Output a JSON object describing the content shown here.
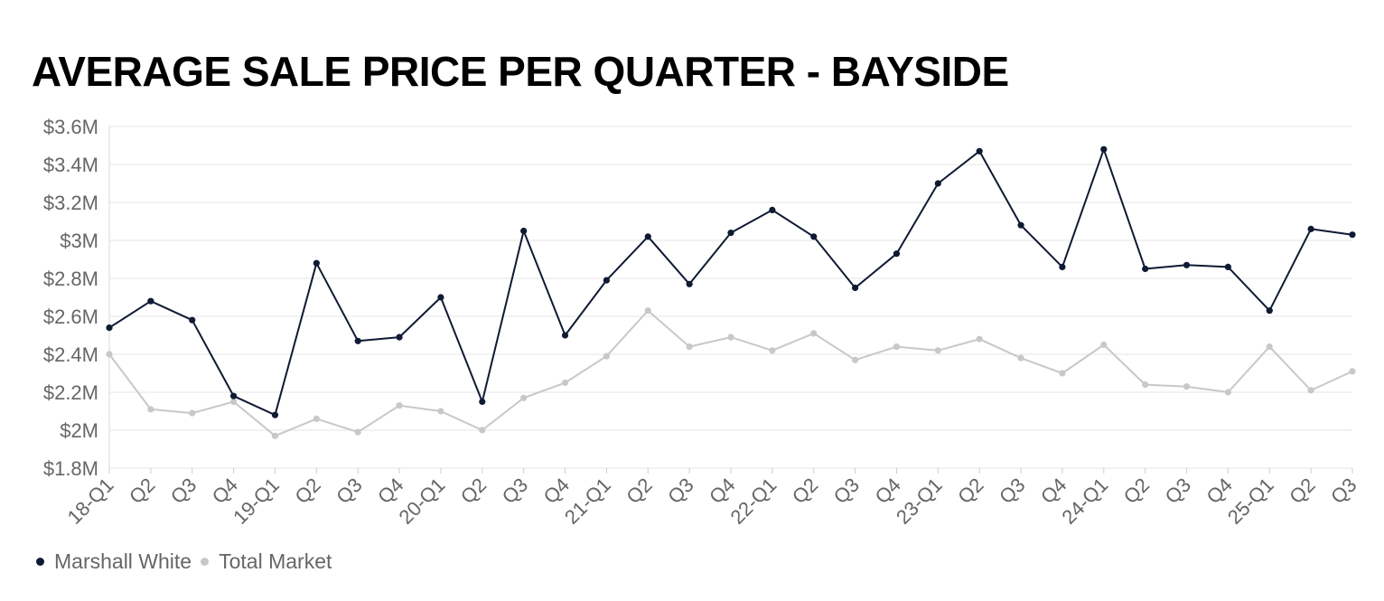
{
  "chart_data": {
    "type": "line",
    "title": "AVERAGE SALE PRICE PER QUARTER - BAYSIDE",
    "xlabel": "",
    "ylabel": "",
    "categories": [
      "18-Q1",
      "Q2",
      "Q3",
      "Q4",
      "19-Q1",
      "Q2",
      "Q3",
      "Q4",
      "20-Q1",
      "Q2",
      "Q3",
      "Q4",
      "21-Q1",
      "Q2",
      "Q3",
      "Q4",
      "22-Q1",
      "Q2",
      "Q3",
      "Q4",
      "23-Q1",
      "Q2",
      "Q3",
      "Q4",
      "24-Q1",
      "Q2",
      "Q3",
      "Q4",
      "25-Q1",
      "Q2",
      "Q3"
    ],
    "ylim": [
      1.8,
      3.6
    ],
    "yticks": [
      1.8,
      2.0,
      2.2,
      2.4,
      2.6,
      2.8,
      3.0,
      3.2,
      3.4,
      3.6
    ],
    "ytick_labels": [
      "$1.8M",
      "$2M",
      "$2.2M",
      "$2.4M",
      "$2.6M",
      "$2.8M",
      "$3M",
      "$3.2M",
      "$3.4M",
      "$3.6M"
    ],
    "grid": true,
    "legend_position": "bottom-left",
    "series": [
      {
        "name": "Marshall White",
        "color": "#0f1a33",
        "values": [
          2.54,
          2.68,
          2.58,
          2.18,
          2.08,
          2.88,
          2.47,
          2.49,
          2.7,
          2.15,
          3.05,
          2.5,
          2.79,
          3.02,
          2.77,
          3.04,
          3.16,
          3.02,
          2.75,
          2.93,
          3.3,
          3.47,
          3.08,
          2.86,
          3.48,
          2.85,
          2.87,
          2.86,
          2.63,
          3.06,
          3.03
        ]
      },
      {
        "name": "Total Market",
        "color": "#c8c8c8",
        "values": [
          2.4,
          2.11,
          2.09,
          2.15,
          1.97,
          2.06,
          1.99,
          2.13,
          2.1,
          2.0,
          2.17,
          2.25,
          2.39,
          2.63,
          2.44,
          2.49,
          2.42,
          2.51,
          2.37,
          2.44,
          2.42,
          2.48,
          2.38,
          2.3,
          2.45,
          2.24,
          2.23,
          2.2,
          2.44,
          2.21,
          2.31
        ]
      }
    ]
  }
}
